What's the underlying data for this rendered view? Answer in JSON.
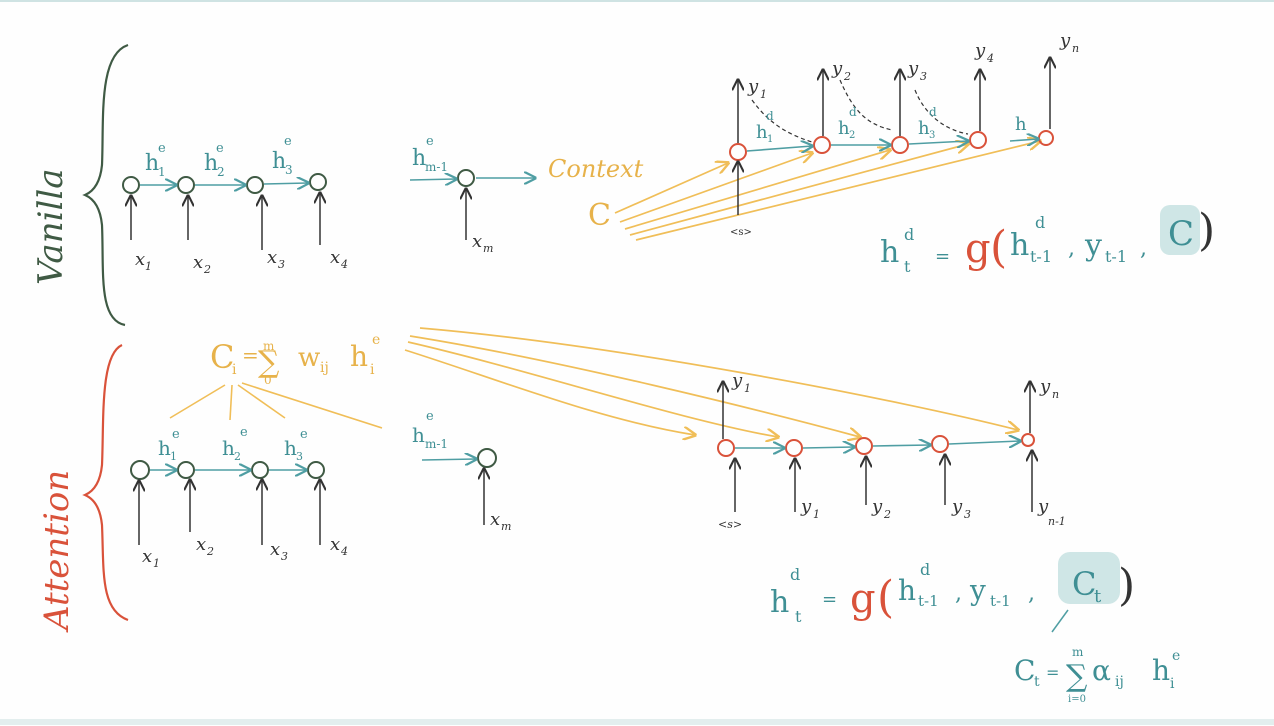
{
  "vanilla": {
    "section_label": "Vanilla",
    "encoder_hidden": [
      "h",
      "h",
      "h"
    ],
    "encoder_hidden_sub": [
      "1",
      "2",
      "3"
    ],
    "encoder_hidden_sup": "e",
    "encoder_inputs": [
      "x",
      "x",
      "x",
      "x"
    ],
    "encoder_inputs_sub": [
      "1",
      "2",
      "3",
      "4"
    ],
    "last_hidden": "h",
    "last_hidden_sub": "m-1",
    "last_input": "x",
    "last_input_sub": "m",
    "context_label": "Context",
    "context_symbol": "C",
    "decoder_outputs": [
      "y",
      "y",
      "y",
      "y",
      "y"
    ],
    "decoder_outputs_sub": [
      "1",
      "2",
      "3",
      "4",
      "n"
    ],
    "decoder_hidden": [
      "h",
      "h",
      "h",
      "h"
    ],
    "decoder_hidden_sub": [
      "1",
      "2",
      "3",
      ""
    ],
    "decoder_hidden_sup": "d",
    "start_token": "<s>",
    "equation": {
      "h": "h",
      "t": "t",
      "d": "d",
      "g": "g",
      "hprev": "h",
      "hprev_sub": "t-1",
      "y": "y",
      "y_sub": "t-1",
      "c": "C"
    }
  },
  "attention": {
    "section_label": "Attention",
    "context_formula": {
      "c": "C",
      "c_sub": "i",
      "eq": "=",
      "sum": "∑",
      "upper": "m",
      "lower": "0",
      "w": "w",
      "w_sub": "ij",
      "h": "h",
      "h_sub": "i",
      "h_sup": "e"
    },
    "encoder_hidden": [
      "h",
      "h",
      "h"
    ],
    "encoder_hidden_sub": [
      "1",
      "2",
      "3"
    ],
    "encoder_hidden_sup": "e",
    "encoder_inputs": [
      "x",
      "x",
      "x",
      "x"
    ],
    "encoder_inputs_sub": [
      "1",
      "2",
      "3",
      "4"
    ],
    "last_hidden": "h",
    "last_hidden_sub": "m-1",
    "last_input": "x",
    "last_input_sub": "m",
    "decoder_outputs": [
      "y",
      "y"
    ],
    "decoder_outputs_sub": [
      "1",
      "n"
    ],
    "decoder_inputs": [
      "<s>",
      "y",
      "y",
      "y",
      "y"
    ],
    "decoder_inputs_sub": [
      "",
      "1",
      "2",
      "3",
      "n-1"
    ],
    "equation": {
      "h": "h",
      "t": "t",
      "d": "d",
      "g": "g",
      "hprev": "h",
      "hprev_sub": "t-1",
      "y": "y",
      "y_sub": "t-1",
      "c": "C",
      "c_sub": "t"
    },
    "ct_formula": {
      "c": "C",
      "c_sub": "t",
      "eq": "=",
      "sum": "∑",
      "upper": "m",
      "lower": "i=0",
      "a": "α",
      "a_sub": "ij",
      "h": "h",
      "h_sub": "i",
      "h_sup": "e"
    }
  },
  "colors": {
    "green": "#3f5a44",
    "teal": "#4f9ea3",
    "orange": "#f0be58",
    "red": "#d9523a"
  }
}
